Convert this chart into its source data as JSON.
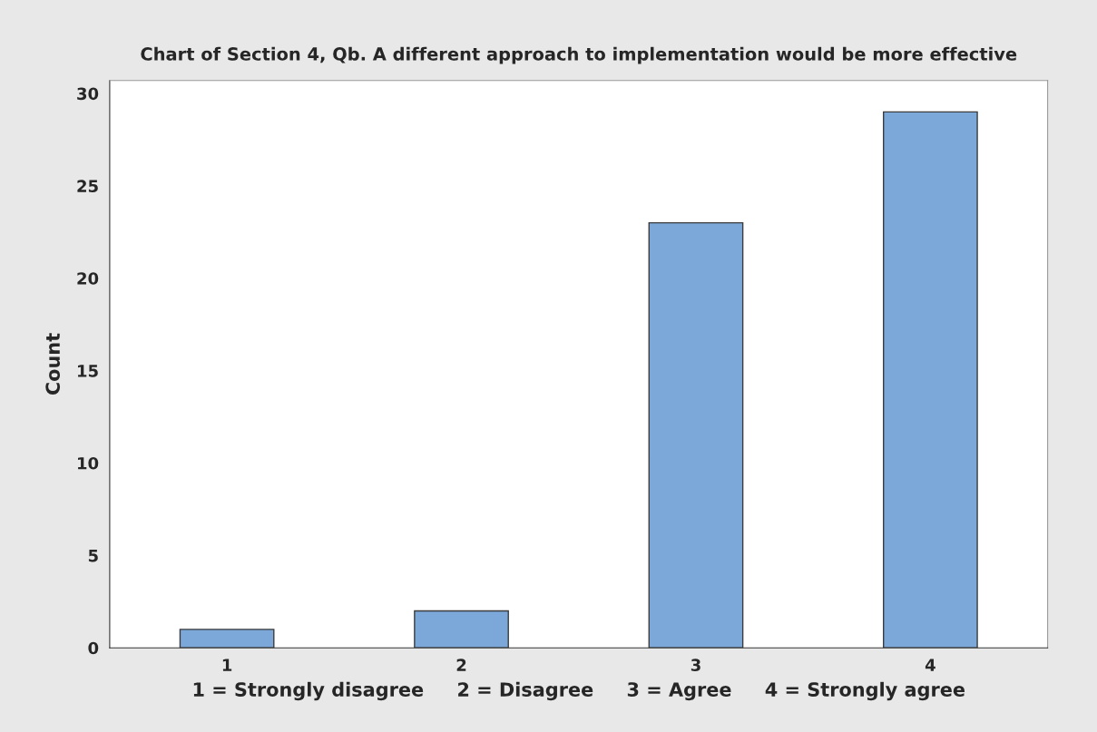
{
  "chart_data": {
    "type": "bar",
    "title": "Chart of Section 4, Qb. A different approach to implementation would be more effective",
    "xlabel": "1 = Strongly disagree     2 = Disagree     3 = Agree     4 = Strongly agree",
    "ylabel": "Count",
    "categories": [
      "1",
      "2",
      "3",
      "4"
    ],
    "values": [
      1,
      2,
      23,
      29
    ],
    "color": "#7ba7d9",
    "ylim": [
      0,
      30.7
    ],
    "yticks": [
      0,
      5,
      10,
      15,
      20,
      25,
      30
    ],
    "grid": false
  }
}
